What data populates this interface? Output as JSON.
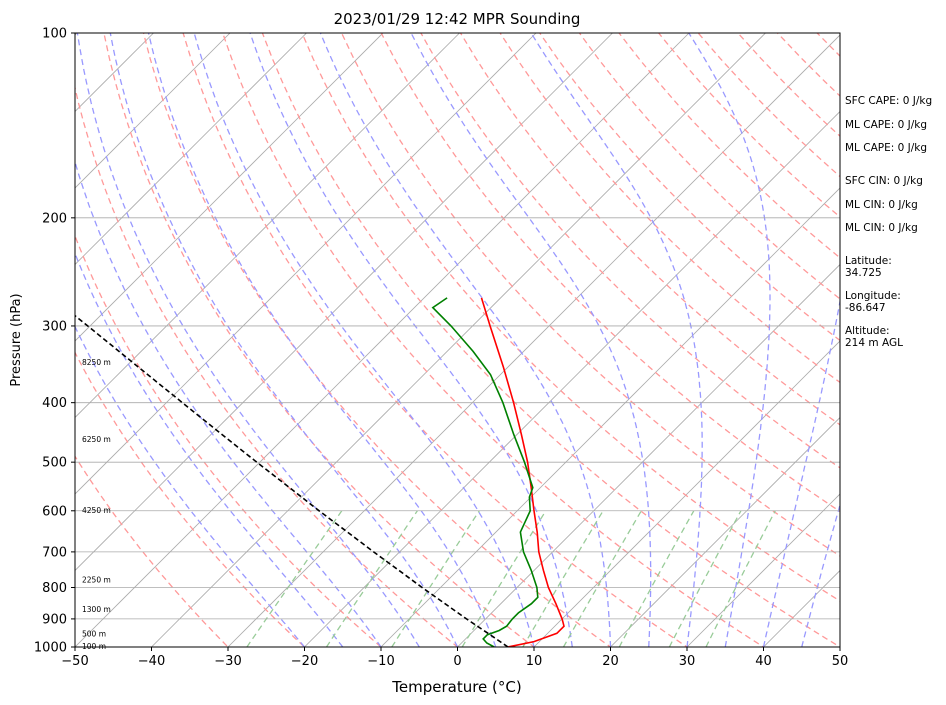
{
  "chart_data": {
    "type": "line",
    "title": "2023/01/29 12:42 MPR Sounding",
    "xlabel": "Temperature (°C)",
    "ylabel": "Pressure (hPa)",
    "xlim": [
      -50,
      50
    ],
    "ylim": [
      1000,
      100
    ],
    "yscale": "log",
    "skew_deg": 45,
    "x_ticks": [
      "−50",
      "−40",
      "−30",
      "−20",
      "−10",
      "0",
      "10",
      "20",
      "30",
      "40",
      "50"
    ],
    "x_tick_values": [
      -50,
      -40,
      -30,
      -20,
      -10,
      0,
      10,
      20,
      30,
      40,
      50
    ],
    "y_ticks": [
      "100",
      "200",
      "300",
      "400",
      "500",
      "600",
      "700",
      "800",
      "900",
      "1000"
    ],
    "y_tick_values": [
      100,
      200,
      300,
      400,
      500,
      600,
      700,
      800,
      900,
      1000
    ],
    "grid": true,
    "height_labels": [
      {
        "text": "100 m",
        "p": 1000
      },
      {
        "text": "500 m",
        "p": 955
      },
      {
        "text": "1300 m",
        "p": 870
      },
      {
        "text": "2250 m",
        "p": 780
      },
      {
        "text": "4250 m",
        "p": 600
      },
      {
        "text": "6250 m",
        "p": 460
      },
      {
        "text": "8250 m",
        "p": 345
      }
    ],
    "series": [
      {
        "id": "temperature",
        "color": "#ff0000",
        "points": [
          [
            1000,
            6.6
          ],
          [
            980,
            9.3
          ],
          [
            950,
            11.2
          ],
          [
            925,
            11.2
          ],
          [
            900,
            10.0
          ],
          [
            850,
            7.2
          ],
          [
            800,
            4.1
          ],
          [
            750,
            1.2
          ],
          [
            700,
            -1.8
          ],
          [
            650,
            -4.6
          ],
          [
            600,
            -7.8
          ],
          [
            550,
            -11.2
          ],
          [
            500,
            -15.0
          ],
          [
            450,
            -19.5
          ],
          [
            400,
            -24.6
          ],
          [
            350,
            -30.6
          ],
          [
            300,
            -37.7
          ],
          [
            270,
            -42.5
          ]
        ]
      },
      {
        "id": "dewpoint",
        "color": "#008000",
        "points": [
          [
            1000,
            4.8
          ],
          [
            985,
            3.3
          ],
          [
            970,
            2.3
          ],
          [
            955,
            2.3
          ],
          [
            940,
            3.3
          ],
          [
            925,
            3.7
          ],
          [
            900,
            3.5
          ],
          [
            880,
            3.5
          ],
          [
            850,
            4.0
          ],
          [
            830,
            4.0
          ],
          [
            800,
            2.6
          ],
          [
            750,
            -0.4
          ],
          [
            700,
            -3.8
          ],
          [
            650,
            -6.8
          ],
          [
            600,
            -8.3
          ],
          [
            570,
            -10.2
          ],
          [
            550,
            -11.0
          ],
          [
            500,
            -15.4
          ],
          [
            450,
            -20.5
          ],
          [
            400,
            -26.0
          ],
          [
            360,
            -31.3
          ],
          [
            330,
            -36.6
          ],
          [
            300,
            -42.8
          ],
          [
            280,
            -47.6
          ],
          [
            270,
            -47.0
          ]
        ]
      },
      {
        "id": "parcel",
        "color": "#000000",
        "dashed": true,
        "points": [
          [
            1000,
            6.6
          ],
          [
            950,
            2.2
          ],
          [
            900,
            -2.5
          ],
          [
            850,
            -7.3
          ],
          [
            800,
            -12.4
          ],
          [
            750,
            -17.7
          ],
          [
            700,
            -23.4
          ],
          [
            650,
            -29.4
          ],
          [
            600,
            -35.9
          ],
          [
            550,
            -42.8
          ],
          [
            500,
            -50.4
          ],
          [
            450,
            -58.7
          ],
          [
            400,
            -67.9
          ],
          [
            350,
            -78.3
          ],
          [
            300,
            -90.3
          ],
          [
            267,
            -99.4
          ]
        ]
      }
    ],
    "background_lines": {
      "isotherm_color": "#aaaaaa",
      "dry_adiabat_color": "#ff9999",
      "moist_adiabat_color": "#9999ff",
      "mixing_ratio_color": "#99cc99"
    }
  },
  "annotations": {
    "sfc_cape": "SFC CAPE: 0 J/kg",
    "ml_cape_1": "ML CAPE: 0 J/kg",
    "ml_cape_2": "ML CAPE: 0 J/kg",
    "sfc_cin": "SFC CIN: 0 J/kg",
    "ml_cin_1": "ML CIN: 0 J/kg",
    "ml_cin_2": "ML CIN: 0 J/kg",
    "latitude": "Latitude:\n34.725",
    "longitude": "Longitude:\n-86.647",
    "altitude": "Altitude:\n214 m AGL"
  }
}
